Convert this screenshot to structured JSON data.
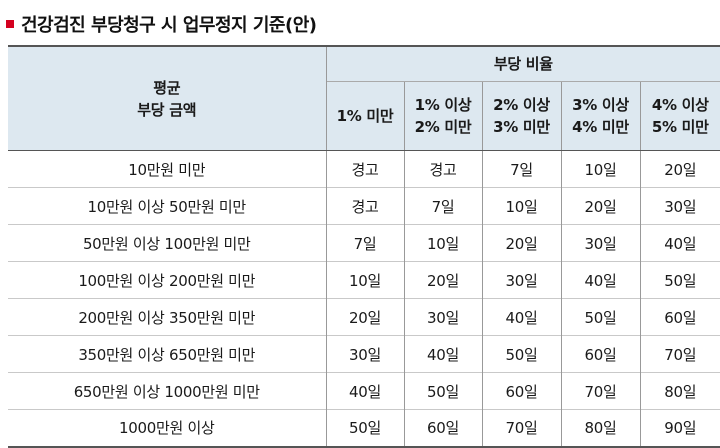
{
  "title": "건강검진 부당청구 시 업무정지 기준(안)",
  "table": {
    "row_header": [
      "평균",
      "부당 금액"
    ],
    "group_header": "부당 비율",
    "columns": [
      [
        "1% 미만"
      ],
      [
        "1% 이상",
        "2% 미만"
      ],
      [
        "2% 이상",
        "3% 미만"
      ],
      [
        "3% 이상",
        "4% 미만"
      ],
      [
        "4% 이상",
        "5% 미만"
      ]
    ],
    "rows": [
      {
        "label": "10만원 미만",
        "values": [
          "경고",
          "경고",
          "7일",
          "10일",
          "20일"
        ]
      },
      {
        "label": "10만원 이상 50만원 미만",
        "values": [
          "경고",
          "7일",
          "10일",
          "20일",
          "30일"
        ]
      },
      {
        "label": "50만원 이상 100만원 미만",
        "values": [
          "7일",
          "10일",
          "20일",
          "30일",
          "40일"
        ]
      },
      {
        "label": "100만원 이상 200만원 미만",
        "values": [
          "10일",
          "20일",
          "30일",
          "40일",
          "50일"
        ]
      },
      {
        "label": "200만원 이상 350만원 미만",
        "values": [
          "20일",
          "30일",
          "40일",
          "50일",
          "60일"
        ]
      },
      {
        "label": "350만원 이상 650만원 미만",
        "values": [
          "30일",
          "40일",
          "50일",
          "60일",
          "70일"
        ]
      },
      {
        "label": "650만원 이상 1000만원 미만",
        "values": [
          "40일",
          "50일",
          "60일",
          "70일",
          "80일"
        ]
      },
      {
        "label": "1000만원 이상",
        "values": [
          "50일",
          "60일",
          "70일",
          "80일",
          "90일"
        ]
      }
    ]
  }
}
